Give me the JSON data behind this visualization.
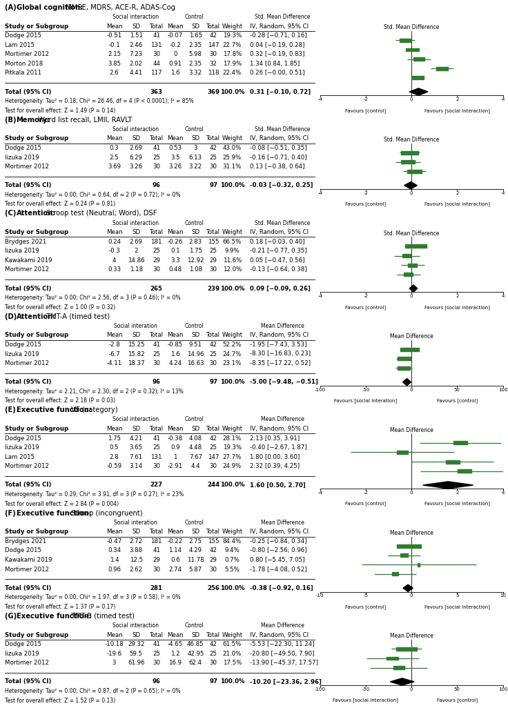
{
  "panels": [
    {
      "id": "A",
      "title_label": "(A) ",
      "title_bold": "Global cognition:",
      "title_rest": " MMSE, MDRS, ACE-R, ADAS-Cog",
      "col_header_left": "Std. Mean Difference",
      "col_header_right": "Std. Mean Difference",
      "favours_left": "Favours [control]",
      "favours_right": "Favours [social interaction]",
      "xlim": [
        -4,
        4
      ],
      "xticks": [
        -4,
        -2,
        0,
        2,
        4
      ],
      "si_label": "Social interaction",
      "studies": [
        {
          "name": "Dodge 2015",
          "si_mean": "-0.51",
          "si_sd": "1.51",
          "si_n": "41",
          "c_mean": "-0.07",
          "c_sd": "1.65",
          "c_n": "42",
          "weight": "19.3%",
          "effect": -0.28,
          "ci_low": -0.71,
          "ci_high": 0.16,
          "ci_str": "-0.28 [−0.71, 0.16]"
        },
        {
          "name": "Lam 2015",
          "si_mean": "-0.1",
          "si_sd": "2.46",
          "si_n": "131",
          "c_mean": "-0.2",
          "c_sd": "2.35",
          "c_n": "147",
          "weight": "22.7%",
          "effect": 0.04,
          "ci_low": -0.19,
          "ci_high": 0.28,
          "ci_str": "0.04 [−0.19, 0.28]"
        },
        {
          "name": "Mortimer 2012",
          "si_mean": "2.15",
          "si_sd": "7.23",
          "si_n": "30",
          "c_mean": "0",
          "c_sd": "5.98",
          "c_n": "30",
          "weight": "17.8%",
          "effect": 0.32,
          "ci_low": -0.19,
          "ci_high": 0.83,
          "ci_str": "0.32 [−0.19, 0.83]"
        },
        {
          "name": "Morton 2018",
          "si_mean": "3.85",
          "si_sd": "2.02",
          "si_n": "44",
          "c_mean": "0.91",
          "c_sd": "2.35",
          "c_n": "32",
          "weight": "17.9%",
          "effect": 1.34,
          "ci_low": 0.84,
          "ci_high": 1.85,
          "ci_str": "1.34 [0.84, 1.85]"
        },
        {
          "name": "Pitkala 2011",
          "si_mean": "2.6",
          "si_sd": "4.41",
          "si_n": "117",
          "c_mean": "1.6",
          "c_sd": "3.32",
          "c_n": "118",
          "weight": "22.4%",
          "effect": 0.26,
          "ci_low": -0.0,
          "ci_high": 0.51,
          "ci_str": "0.26 [−0.00, 0.51]"
        }
      ],
      "total_n_si": "363",
      "total_n_c": "369",
      "pooled_effect": 0.31,
      "pooled_ci_low": -0.1,
      "pooled_ci_high": 0.72,
      "pooled_str": "0.31 [−0.10, 0.72]",
      "het_str": "Heterogeneity: Tau² = 0.18; Chi² = 26.46, df = 4 (P < 0.0001); I² = 85%",
      "test_str": "Test for overall effect: Z = 1.49 (P = 0.14)"
    },
    {
      "id": "B",
      "title_label": "(B) ",
      "title_bold": "Memory:",
      "title_rest": " Word list recall, LMII, RAVLT",
      "col_header_left": "Std. Mean Difference",
      "col_header_right": "Std. Mean Difference",
      "favours_left": "Favours [control]",
      "favours_right": "Favours [social interaction]",
      "xlim": [
        -4,
        4
      ],
      "xticks": [
        -4,
        -2,
        0,
        2,
        4
      ],
      "si_label": "Social interaction",
      "studies": [
        {
          "name": "Dodge 2015",
          "si_mean": "0.3",
          "si_sd": "2.69",
          "si_n": "41",
          "c_mean": "0.53",
          "c_sd": "3",
          "c_n": "42",
          "weight": "43.0%",
          "effect": -0.08,
          "ci_low": -0.51,
          "ci_high": 0.35,
          "ci_str": "-0.08 [−0.51, 0.35]"
        },
        {
          "name": "Iizuka 2019",
          "si_mean": "2.5",
          "si_sd": "6.29",
          "si_n": "25",
          "c_mean": "3.5",
          "c_sd": "6.13",
          "c_n": "25",
          "weight": "25.9%",
          "effect": -0.16,
          "ci_low": -0.71,
          "ci_high": 0.4,
          "ci_str": "-0.16 [−0.71, 0.40]"
        },
        {
          "name": "Mortimer 2012",
          "si_mean": "3.69",
          "si_sd": "3.26",
          "si_n": "30",
          "c_mean": "3.26",
          "c_sd": "3.22",
          "c_n": "30",
          "weight": "31.1%",
          "effect": 0.13,
          "ci_low": -0.38,
          "ci_high": 0.64,
          "ci_str": "0.13 [−0.38, 0.64]"
        }
      ],
      "total_n_si": "96",
      "total_n_c": "97",
      "pooled_effect": -0.03,
      "pooled_ci_low": -0.32,
      "pooled_ci_high": 0.25,
      "pooled_str": "-0.03 [−0.32, 0.25]",
      "het_str": "Heterogeneity: Tau² = 0.00; Chi² = 0.64, df = 2 (P = 0.72); I² = 0%",
      "test_str": "Test for overall effect: Z = 0.24 (P = 0.81)"
    },
    {
      "id": "C",
      "title_label": "(C) ",
      "title_bold": "Attention:",
      "title_rest": " Stroop test (Neutral; Word), DSF",
      "col_header_left": "Std. Mean Difference",
      "col_header_right": "Std. Mean Difference",
      "favours_left": "Favours [control]",
      "favours_right": "Favours [social interaction]",
      "xlim": [
        -4,
        4
      ],
      "xticks": [
        -4,
        -2,
        0,
        2,
        4
      ],
      "si_label": "Social interaction",
      "studies": [
        {
          "name": "Brydges 2021",
          "si_mean": "0.24",
          "si_sd": "2.69",
          "si_n": "181",
          "c_mean": "-0.26",
          "c_sd": "2.83",
          "c_n": "155",
          "weight": "66.5%",
          "effect": 0.18,
          "ci_low": -0.03,
          "ci_high": 0.4,
          "ci_str": "0.18 [−0.03, 0.40]"
        },
        {
          "name": "Iizuka 2019",
          "si_mean": "-0.3",
          "si_sd": "2",
          "si_n": "25",
          "c_mean": "0.1",
          "c_sd": "1.75",
          "c_n": "25",
          "weight": "9.9%",
          "effect": -0.21,
          "ci_low": -0.77,
          "ci_high": 0.35,
          "ci_str": "-0.21 [−0.77, 0.35]"
        },
        {
          "name": "Kawakami 2019",
          "si_mean": "4",
          "si_sd": "14.86",
          "si_n": "29",
          "c_mean": "3.3",
          "c_sd": "12.92",
          "c_n": "29",
          "weight": "11.6%",
          "effect": 0.05,
          "ci_low": -0.47,
          "ci_high": 0.56,
          "ci_str": "0.05 [−0.47, 0.56]"
        },
        {
          "name": "Mortimer 2012",
          "si_mean": "0.33",
          "si_sd": "1.18",
          "si_n": "30",
          "c_mean": "0.48",
          "c_sd": "1.08",
          "c_n": "30",
          "weight": "12.0%",
          "effect": -0.13,
          "ci_low": -0.64,
          "ci_high": 0.38,
          "ci_str": "-0.13 [−0.64, 0.38]"
        }
      ],
      "total_n_si": "265",
      "total_n_c": "239",
      "pooled_effect": 0.09,
      "pooled_ci_low": -0.09,
      "pooled_ci_high": 0.26,
      "pooled_str": "0.09 [−0.09, 0.26]",
      "het_str": "Heterogeneity: Tau² = 0.00; Chi² = 2.56, df = 3 (P = 0.46); I² = 0%",
      "test_str": "Test for overall effect: Z = 1.00 (P = 0.32)"
    },
    {
      "id": "D",
      "title_label": "(D) ",
      "title_bold": "Attention:",
      "title_rest": " TMT-A (timed test)",
      "col_header_left": "Mean Difference",
      "col_header_right": "Mean Difference",
      "favours_left": "Favours [social interation]",
      "favours_right": "Favours [control]",
      "xlim": [
        -100,
        100
      ],
      "xticks": [
        -100,
        -50,
        0,
        50,
        100
      ],
      "si_label": "Social interation",
      "studies": [
        {
          "name": "Dodge 2015",
          "si_mean": "-2.8",
          "si_sd": "15.25",
          "si_n": "41",
          "c_mean": "-0.85",
          "c_sd": "9.51",
          "c_n": "42",
          "weight": "52.2%",
          "effect": -1.95,
          "ci_low": -7.43,
          "ci_high": 3.53,
          "ci_str": "-1.95 [−7.43, 3.53]"
        },
        {
          "name": "Iizuka 2019",
          "si_mean": "-6.7",
          "si_sd": "15.82",
          "si_n": "25",
          "c_mean": "1.6",
          "c_sd": "14.96",
          "c_n": "25",
          "weight": "24.7%",
          "effect": -8.3,
          "ci_low": -16.83,
          "ci_high": 0.23,
          "ci_str": "-8.30 [−16.83, 0.23]"
        },
        {
          "name": "Mortimer 2012",
          "si_mean": "-4.11",
          "si_sd": "18.37",
          "si_n": "30",
          "c_mean": "4.24",
          "c_sd": "16.63",
          "c_n": "30",
          "weight": "23.1%",
          "effect": -8.35,
          "ci_low": -17.22,
          "ci_high": 0.52,
          "ci_str": "-8.35 [−17.22, 0.52]"
        }
      ],
      "total_n_si": "96",
      "total_n_c": "97",
      "pooled_effect": -5.0,
      "pooled_ci_low": -9.48,
      "pooled_ci_high": -0.51,
      "pooled_str": "-5.00 [−9.48, −0.51]",
      "het_str": "Heterogeneity: Tau² = 2.21; Chi² = 2.30, df = 2 (P = 0.32); I² = 13%",
      "test_str": "Test for overall effect: Z = 2.18 (P = 0.03)"
    },
    {
      "id": "E",
      "title_label": "(E) ",
      "title_bold": "Executive function:",
      "title_rest": " VF (category)",
      "col_header_left": "Mean Difference",
      "col_header_right": "Mean Difference",
      "favours_left": "Favours [control]",
      "favours_right": "Favours [social interaction]",
      "xlim": [
        -4,
        4
      ],
      "xticks": [
        -4,
        -2,
        0,
        2,
        4
      ],
      "si_label": "Social interaction",
      "studies": [
        {
          "name": "Dodge 2015",
          "si_mean": "1.75",
          "si_sd": "4.21",
          "si_n": "41",
          "c_mean": "-0.38",
          "c_sd": "4.08",
          "c_n": "42",
          "weight": "28.1%",
          "effect": 2.13,
          "ci_low": 0.35,
          "ci_high": 3.91,
          "ci_str": "2.13 [0.35, 3.91]"
        },
        {
          "name": "Iizuka 2019",
          "si_mean": "0.5",
          "si_sd": "3.65",
          "si_n": "25",
          "c_mean": "0.9",
          "c_sd": "4.48",
          "c_n": "25",
          "weight": "19.3%",
          "effect": -0.4,
          "ci_low": -2.67,
          "ci_high": 1.87,
          "ci_str": "-0.40 [−2.67, 1.87]"
        },
        {
          "name": "Lam 2015",
          "si_mean": "2.8",
          "si_sd": "7.61",
          "si_n": "131",
          "c_mean": "1",
          "c_sd": "7.67",
          "c_n": "147",
          "weight": "27.7%",
          "effect": 1.8,
          "ci_low": 0.0,
          "ci_high": 3.6,
          "ci_str": "1.80 [0.00, 3.60]"
        },
        {
          "name": "Mortimer 2012",
          "si_mean": "-0.59",
          "si_sd": "3.14",
          "si_n": "30",
          "c_mean": "-2.91",
          "c_sd": "4.4",
          "c_n": "30",
          "weight": "24.9%",
          "effect": 2.32,
          "ci_low": 0.39,
          "ci_high": 4.25,
          "ci_str": "2.32 [0.39, 4.25]"
        }
      ],
      "total_n_si": "227",
      "total_n_c": "244",
      "pooled_effect": 1.6,
      "pooled_ci_low": 0.5,
      "pooled_ci_high": 2.7,
      "pooled_str": "1.60 [0.50, 2.70]",
      "het_str": "Heterogeneity: Tau² = 0.29; Chi² = 3.91, df = 3 (P = 0.27); I² = 23%",
      "test_str": "Test for overall effect: Z = 2.84 (P = 0.004)"
    },
    {
      "id": "F",
      "title_label": "(F) ",
      "title_bold": "Executive function:",
      "title_rest": " Stroop (incongruent)",
      "col_header_left": "Mean Difference",
      "col_header_right": "Mean Difference",
      "favours_left": "Favours [control]",
      "favours_right": "Favours [social interaction]",
      "xlim": [
        -10,
        10
      ],
      "xticks": [
        -10,
        -5,
        0,
        5,
        10
      ],
      "si_label": "Social interation",
      "studies": [
        {
          "name": "Brydges 2021",
          "si_mean": "-0.47",
          "si_sd": "2.72",
          "si_n": "181",
          "c_mean": "-0.22",
          "c_sd": "2.75",
          "c_n": "155",
          "weight": "84.4%",
          "effect": -0.25,
          "ci_low": -0.84,
          "ci_high": 0.34,
          "ci_str": "-0.25 [−0.84, 0.34]"
        },
        {
          "name": "Dodge 2015",
          "si_mean": "0.34",
          "si_sd": "3.88",
          "si_n": "41",
          "c_mean": "1.14",
          "c_sd": "4.29",
          "c_n": "42",
          "weight": "9.4%",
          "effect": -0.8,
          "ci_low": -2.56,
          "ci_high": 0.96,
          "ci_str": "-0.80 [−2.56, 0.96]"
        },
        {
          "name": "Kawakami 2019",
          "si_mean": "1.4",
          "si_sd": "12.5",
          "si_n": "29",
          "c_mean": "0.6",
          "c_sd": "11.78",
          "c_n": "29",
          "weight": "0.7%",
          "effect": 0.8,
          "ci_low": -5.45,
          "ci_high": 7.05,
          "ci_str": "0.80 [−5.45, 7.05]"
        },
        {
          "name": "Mortimer 2012",
          "si_mean": "0.96",
          "si_sd": "2.62",
          "si_n": "30",
          "c_mean": "2.74",
          "c_sd": "5.87",
          "c_n": "30",
          "weight": "5.5%",
          "effect": -1.78,
          "ci_low": -4.08,
          "ci_high": 0.52,
          "ci_str": "-1.78 [−4.08, 0.52]"
        }
      ],
      "total_n_si": "281",
      "total_n_c": "256",
      "pooled_effect": -0.38,
      "pooled_ci_low": -0.92,
      "pooled_ci_high": 0.16,
      "pooled_str": "-0.38 [−0.92, 0.16]",
      "het_str": "Heterogeneity: Tau² = 0.00; Chi² = 1.97, df = 3 (P = 0.58); I² = 0%",
      "test_str": "Test for overall effect: Z = 1.37 (P = 0.17)"
    },
    {
      "id": "G",
      "title_label": "(G) ",
      "title_bold": "Executive function:",
      "title_rest": " TMT-B (timed test)",
      "col_header_left": "Mean Difference",
      "col_header_right": "Mean Difference",
      "favours_left": "Favours [social interaction]",
      "favours_right": "Favours [control]",
      "xlim": [
        -100,
        100
      ],
      "xticks": [
        -100,
        -50,
        0,
        50,
        100
      ],
      "si_label": "Social interaction",
      "studies": [
        {
          "name": "Dodge 2015",
          "si_mean": "-10.18",
          "si_sd": "29.32",
          "si_n": "41",
          "c_mean": "-4.65",
          "c_sd": "46.85",
          "c_n": "42",
          "weight": "61.5%",
          "effect": -5.53,
          "ci_low": -22.3,
          "ci_high": 11.24,
          "ci_str": "-5.53 [−22.30, 11.24]"
        },
        {
          "name": "Iizuka 2019",
          "si_mean": "-19.6",
          "si_sd": "59.5",
          "si_n": "25",
          "c_mean": "1.2",
          "c_sd": "42.95",
          "c_n": "25",
          "weight": "21.0%",
          "effect": -20.8,
          "ci_low": -49.5,
          "ci_high": 7.9,
          "ci_str": "-20.80 [−49.50, 7.90]"
        },
        {
          "name": "Mortimer 2012",
          "si_mean": "3",
          "si_sd": "61.96",
          "si_n": "30",
          "c_mean": "16.9",
          "c_sd": "62.4",
          "c_n": "30",
          "weight": "17.5%",
          "effect": -13.9,
          "ci_low": -45.37,
          "ci_high": 17.57,
          "ci_str": "-13.90 [−45.37, 17.57]"
        }
      ],
      "total_n_si": "96",
      "total_n_c": "97",
      "pooled_effect": -10.2,
      "pooled_ci_low": -23.36,
      "pooled_ci_high": 2.96,
      "pooled_str": "-10.20 [−23.36, 2.96]",
      "het_str": "Heterogeneity: Tau² = 0.00; Chi² = 0.87, df = 2 (P = 0.65); I² = 0%",
      "test_str": "Test for overall effect: Z = 1.52 (P = 0.13)"
    }
  ],
  "study_color": "#2e7d2e",
  "pooled_color": "#000000",
  "bg_color": "#ffffff",
  "fs": 6.2,
  "fs_small": 5.5,
  "fs_title": 7.2
}
